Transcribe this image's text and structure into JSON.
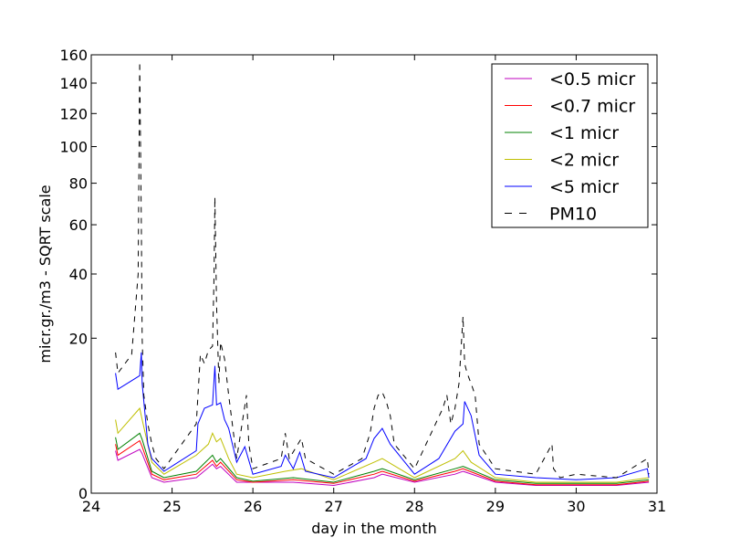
{
  "chart_data": {
    "type": "line",
    "title": "",
    "xlabel": "day in the month",
    "ylabel": "micr.gr./m3 - SQRT scale",
    "xlim": [
      24,
      31
    ],
    "ylim": [
      0,
      160
    ],
    "y_scale": "sqrt",
    "x_ticks": [
      "24",
      "25",
      "26",
      "27",
      "28",
      "29",
      "30",
      "31"
    ],
    "y_ticks": [
      "0",
      "20",
      "40",
      "60",
      "80",
      "100",
      "120",
      "140",
      "160"
    ],
    "grid": false,
    "legend_position": "top-right",
    "series": [
      {
        "name": "<0.5 micr",
        "color": "#bf00bf",
        "style": "solid",
        "x": [
          24.3,
          24.33,
          24.6,
          24.63,
          24.75,
          24.9,
          25.3,
          25.5,
          25.55,
          25.6,
          25.8,
          26.0,
          26.5,
          27.0,
          27.5,
          27.6,
          28.0,
          28.5,
          28.6,
          29.0,
          29.5,
          30.0,
          30.5,
          30.9
        ],
        "y": [
          1.5,
          0.9,
          1.6,
          1.3,
          0.2,
          0.1,
          0.2,
          0.7,
          0.5,
          0.6,
          0.1,
          0.1,
          0.1,
          0.05,
          0.2,
          0.3,
          0.1,
          0.3,
          0.4,
          0.1,
          0.05,
          0.05,
          0.05,
          0.1
        ]
      },
      {
        "name": "<0.7 micr",
        "color": "#ff0000",
        "style": "solid",
        "x": [
          24.3,
          24.33,
          24.6,
          24.63,
          24.75,
          24.9,
          25.3,
          25.5,
          25.55,
          25.6,
          25.8,
          26.0,
          26.5,
          27.0,
          27.5,
          27.6,
          28.0,
          28.5,
          28.6,
          29.0,
          29.5,
          30.0,
          30.5,
          30.9
        ],
        "y": [
          2.0,
          1.2,
          2.3,
          1.8,
          0.3,
          0.15,
          0.3,
          0.9,
          0.6,
          0.8,
          0.15,
          0.1,
          0.15,
          0.08,
          0.3,
          0.4,
          0.12,
          0.4,
          0.5,
          0.12,
          0.06,
          0.06,
          0.06,
          0.12
        ]
      },
      {
        "name": "<1 micr",
        "color": "#008000",
        "style": "solid",
        "x": [
          24.3,
          24.33,
          24.6,
          24.63,
          24.75,
          24.9,
          25.3,
          25.5,
          25.55,
          25.6,
          25.8,
          26.0,
          26.5,
          27.0,
          27.5,
          27.6,
          28.0,
          28.5,
          28.6,
          29.0,
          29.5,
          30.0,
          30.5,
          30.9
        ],
        "y": [
          2.6,
          1.6,
          3.0,
          2.4,
          0.4,
          0.2,
          0.4,
          1.2,
          0.8,
          1.0,
          0.2,
          0.12,
          0.2,
          0.1,
          0.4,
          0.5,
          0.15,
          0.5,
          0.6,
          0.15,
          0.08,
          0.08,
          0.08,
          0.15
        ]
      },
      {
        "name": "<2 micr",
        "color": "#bfbf00",
        "style": "solid",
        "x": [
          24.3,
          24.33,
          24.6,
          24.63,
          24.75,
          24.9,
          25.3,
          25.45,
          25.5,
          25.55,
          25.6,
          25.7,
          25.8,
          26.0,
          26.4,
          26.6,
          27.0,
          27.5,
          27.6,
          28.0,
          28.5,
          28.6,
          28.7,
          29.0,
          29.5,
          30.0,
          30.5,
          30.9
        ],
        "y": [
          4.5,
          3.0,
          6.0,
          4.5,
          0.8,
          0.3,
          1.2,
          2.0,
          3.0,
          2.2,
          2.5,
          1.0,
          0.3,
          0.2,
          0.4,
          0.5,
          0.15,
          0.8,
          1.0,
          0.2,
          1.0,
          1.5,
          0.8,
          0.2,
          0.1,
          0.1,
          0.1,
          0.2
        ]
      },
      {
        "name": "<5 micr",
        "color": "#0000ff",
        "style": "solid",
        "x": [
          24.3,
          24.33,
          24.6,
          24.62,
          24.63,
          24.7,
          24.75,
          24.9,
          25.3,
          25.32,
          25.4,
          25.5,
          25.53,
          25.55,
          25.6,
          25.65,
          25.7,
          25.8,
          25.9,
          26.0,
          26.35,
          26.4,
          26.5,
          26.58,
          26.65,
          27.0,
          27.4,
          27.5,
          27.6,
          27.7,
          28.0,
          28.3,
          28.5,
          28.6,
          28.62,
          28.7,
          28.8,
          29.0,
          29.5,
          30.0,
          30.5,
          30.88,
          30.9
        ],
        "y": [
          12.0,
          9.0,
          11.5,
          16.5,
          10.0,
          2.0,
          1.0,
          0.4,
          1.5,
          4.0,
          6.0,
          6.5,
          13.5,
          6.5,
          6.8,
          4.5,
          3.5,
          0.8,
          1.8,
          0.3,
          0.6,
          1.2,
          0.5,
          1.4,
          0.4,
          0.2,
          1.0,
          2.5,
          3.5,
          2.0,
          0.3,
          1.0,
          3.2,
          4.0,
          7.0,
          5.0,
          1.2,
          0.3,
          0.2,
          0.15,
          0.2,
          0.5,
          0.2
        ]
      },
      {
        "name": "PM10",
        "color": "#000000",
        "style": "dashed",
        "x": [
          24.3,
          24.33,
          24.5,
          24.58,
          24.6,
          24.62,
          24.63,
          24.65,
          24.7,
          24.75,
          24.8,
          24.9,
          25.3,
          25.35,
          25.4,
          25.45,
          25.5,
          25.52,
          25.53,
          25.55,
          25.58,
          25.6,
          25.65,
          25.7,
          25.8,
          25.92,
          25.95,
          26.0,
          26.35,
          26.4,
          26.45,
          26.6,
          26.65,
          27.0,
          27.35,
          27.45,
          27.5,
          27.55,
          27.6,
          27.65,
          27.7,
          27.75,
          28.0,
          28.35,
          28.4,
          28.45,
          28.5,
          28.55,
          28.6,
          28.62,
          28.65,
          28.7,
          28.75,
          28.8,
          29.0,
          29.5,
          29.7,
          29.72,
          29.8,
          30.0,
          30.5,
          30.88,
          30.9
        ],
        "y": [
          16.5,
          12.0,
          16.0,
          40.0,
          155.0,
          60.0,
          20.0,
          8.0,
          4.0,
          2.0,
          1.0,
          0.5,
          4.0,
          16.0,
          14.0,
          17.0,
          18.0,
          40.0,
          73.0,
          30.0,
          10.0,
          19.0,
          15.0,
          8.0,
          1.0,
          8.0,
          2.0,
          0.5,
          1.0,
          3.0,
          1.0,
          2.5,
          1.0,
          0.3,
          1.0,
          3.0,
          6.0,
          8.0,
          8.5,
          7.0,
          5.0,
          2.0,
          0.5,
          6.0,
          8.0,
          4.0,
          6.0,
          10.0,
          26.0,
          14.0,
          12.0,
          10.0,
          8.0,
          2.0,
          0.5,
          0.3,
          2.0,
          0.5,
          0.2,
          0.3,
          0.2,
          1.0,
          0.3
        ]
      }
    ]
  }
}
